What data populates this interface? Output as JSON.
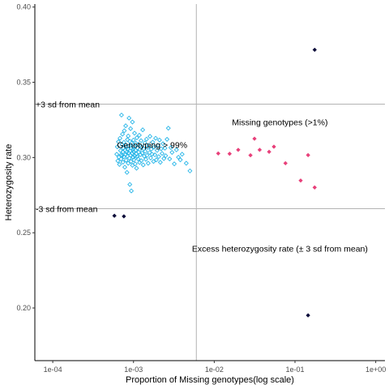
{
  "chart_data": {
    "type": "scatter",
    "xlabel": "Proportion of Missing genotypes(log scale)",
    "ylabel": "Heterozygosity rate",
    "xscale": "log",
    "xlim": [
      6e-05,
      1.3
    ],
    "ylim": [
      0.165,
      0.402
    ],
    "x_ticks": [
      {
        "value": 0.0001,
        "label": "1e-04"
      },
      {
        "value": 0.001,
        "label": "1e-03"
      },
      {
        "value": 0.01,
        "label": "1e-02"
      },
      {
        "value": 0.1,
        "label": "1e-01"
      },
      {
        "value": 1,
        "label": "1e+00"
      }
    ],
    "y_ticks": [
      {
        "value": 0.2,
        "label": "0.20"
      },
      {
        "value": 0.25,
        "label": "0.25"
      },
      {
        "value": 0.3,
        "label": "0.30"
      },
      {
        "value": 0.35,
        "label": "0.35"
      },
      {
        "value": 0.4,
        "label": "0.40"
      }
    ],
    "grid": false,
    "reference_lines": {
      "horizontal": [
        0.3355,
        0.266
      ],
      "vertical": [
        0.006
      ]
    },
    "annotations": [
      {
        "text": "+3 sd from mean",
        "x": 6e-05,
        "y": 0.3355,
        "color": "#1a3a1a",
        "anchor": "start"
      },
      {
        "text": "-3 sd from mean",
        "x": 6e-05,
        "y": 0.266,
        "color": "#1a3a1a",
        "anchor": "start"
      },
      {
        "text": "Genotyping > 99%",
        "x": 0.0017,
        "y": 0.3085,
        "color": "#000000",
        "anchor": "middle"
      },
      {
        "text": "Missing genotypes (>1%)",
        "x": 0.065,
        "y": 0.3235,
        "color": "#000000",
        "anchor": "middle"
      },
      {
        "text": "Excess heterozygosity rate (± 3 sd from mean)",
        "x": 0.065,
        "y": 0.2395,
        "color": "#000000",
        "anchor": "middle"
      }
    ],
    "series": [
      {
        "color": "#29b6e8",
        "marker": "open-diamond",
        "points": [
          [
            0.00062,
            0.3022
          ],
          [
            0.00063,
            0.3071
          ],
          [
            0.00064,
            0.2978
          ],
          [
            0.00065,
            0.3105
          ],
          [
            0.00066,
            0.3002
          ],
          [
            0.00067,
            0.2954
          ],
          [
            0.00068,
            0.3128
          ],
          [
            0.00069,
            0.3046
          ],
          [
            0.0007,
            0.3017
          ],
          [
            0.0007,
            0.2991
          ],
          [
            0.00071,
            0.3282
          ],
          [
            0.00072,
            0.3088
          ],
          [
            0.00072,
            0.3012
          ],
          [
            0.00073,
            0.3155
          ],
          [
            0.00074,
            0.3038
          ],
          [
            0.00074,
            0.2969
          ],
          [
            0.00075,
            0.3062
          ],
          [
            0.00076,
            0.3101
          ],
          [
            0.00076,
            0.3005
          ],
          [
            0.00077,
            0.3178
          ],
          [
            0.00078,
            0.2936
          ],
          [
            0.00078,
            0.3049
          ],
          [
            0.00079,
            0.3084
          ],
          [
            0.0008,
            0.3021
          ],
          [
            0.0008,
            0.3211
          ],
          [
            0.00081,
            0.2982
          ],
          [
            0.00082,
            0.3067
          ],
          [
            0.00082,
            0.3035
          ],
          [
            0.00083,
            0.2901
          ],
          [
            0.00084,
            0.3119
          ],
          [
            0.00084,
            0.3009
          ],
          [
            0.00085,
            0.3058
          ],
          [
            0.00086,
            0.3143
          ],
          [
            0.00086,
            0.2962
          ],
          [
            0.00087,
            0.3031
          ],
          [
            0.00088,
            0.3262
          ],
          [
            0.00088,
            0.3076
          ],
          [
            0.00089,
            0.2996
          ],
          [
            0.0009,
            0.3108
          ],
          [
            0.0009,
            0.2821
          ],
          [
            0.00091,
            0.3044
          ],
          [
            0.00092,
            0.3015
          ],
          [
            0.00092,
            0.3192
          ],
          [
            0.00093,
            0.2974
          ],
          [
            0.00094,
            0.3061
          ],
          [
            0.00094,
            0.2778
          ],
          [
            0.00095,
            0.3095
          ],
          [
            0.00096,
            0.3027
          ],
          [
            0.00097,
            0.3236
          ],
          [
            0.00097,
            0.2948
          ],
          [
            0.00098,
            0.3052
          ],
          [
            0.00099,
            0.3002
          ],
          [
            0.001,
            0.3116
          ],
          [
            0.001,
            0.3039
          ],
          [
            0.00101,
            0.2985
          ],
          [
            0.00102,
            0.3074
          ],
          [
            0.00103,
            0.3162
          ],
          [
            0.00104,
            0.3011
          ],
          [
            0.00105,
            0.2958
          ],
          [
            0.00106,
            0.3048
          ],
          [
            0.00107,
            0.3094
          ],
          [
            0.00108,
            0.3024
          ],
          [
            0.00109,
            0.2929
          ],
          [
            0.0011,
            0.3131
          ],
          [
            0.00111,
            0.3006
          ],
          [
            0.00112,
            0.3064
          ],
          [
            0.00114,
            0.2991
          ],
          [
            0.00115,
            0.3087
          ],
          [
            0.00116,
            0.3036
          ],
          [
            0.00118,
            0.3148
          ],
          [
            0.00119,
            0.2967
          ],
          [
            0.0012,
            0.3053
          ],
          [
            0.00122,
            0.3019
          ],
          [
            0.00124,
            0.3112
          ],
          [
            0.00125,
            0.2979
          ],
          [
            0.00127,
            0.3071
          ],
          [
            0.00128,
            0.3029
          ],
          [
            0.0013,
            0.3184
          ],
          [
            0.00132,
            0.2951
          ],
          [
            0.00134,
            0.3058
          ],
          [
            0.00136,
            0.3009
          ],
          [
            0.00138,
            0.3097
          ],
          [
            0.0014,
            0.3041
          ],
          [
            0.00142,
            0.2988
          ],
          [
            0.00145,
            0.3122
          ],
          [
            0.00147,
            0.3014
          ],
          [
            0.0015,
            0.3066
          ],
          [
            0.00152,
            0.2962
          ],
          [
            0.00155,
            0.3081
          ],
          [
            0.00158,
            0.3033
          ],
          [
            0.0016,
            0.3141
          ],
          [
            0.00163,
            0.2997
          ],
          [
            0.00166,
            0.3056
          ],
          [
            0.0017,
            0.3022
          ],
          [
            0.00173,
            0.3102
          ],
          [
            0.00177,
            0.2974
          ],
          [
            0.0018,
            0.3069
          ],
          [
            0.00184,
            0.3018
          ],
          [
            0.00188,
            0.3128
          ],
          [
            0.00192,
            0.2985
          ],
          [
            0.00196,
            0.3047
          ],
          [
            0.002,
            0.3081
          ],
          [
            0.00205,
            0.3006
          ],
          [
            0.0021,
            0.3116
          ],
          [
            0.00215,
            0.2968
          ],
          [
            0.0022,
            0.3058
          ],
          [
            0.00226,
            0.3027
          ],
          [
            0.00232,
            0.3092
          ],
          [
            0.00238,
            0.2993
          ],
          [
            0.00245,
            0.3062
          ],
          [
            0.0025,
            0.3012
          ],
          [
            0.0026,
            0.3121
          ],
          [
            0.0027,
            0.3195
          ],
          [
            0.0028,
            0.2991
          ],
          [
            0.0029,
            0.3066
          ],
          [
            0.003,
            0.3034
          ],
          [
            0.0032,
            0.2958
          ],
          [
            0.0034,
            0.3051
          ],
          [
            0.0036,
            0.3002
          ],
          [
            0.0038,
            0.2985
          ],
          [
            0.004,
            0.3022
          ],
          [
            0.0045,
            0.2962
          ],
          [
            0.005,
            0.2911
          ]
        ]
      },
      {
        "color": "#e8407a",
        "marker": "filled-diamond",
        "points": [
          [
            0.0112,
            0.3027
          ],
          [
            0.0155,
            0.3025
          ],
          [
            0.0198,
            0.3051
          ],
          [
            0.0281,
            0.3015
          ],
          [
            0.0315,
            0.3125
          ],
          [
            0.0365,
            0.3051
          ],
          [
            0.0478,
            0.3038
          ],
          [
            0.0548,
            0.3072
          ],
          [
            0.0762,
            0.2962
          ],
          [
            0.1175,
            0.2847
          ],
          [
            0.1452,
            0.3016
          ],
          [
            0.1752,
            0.2801
          ]
        ]
      },
      {
        "color": "#0d0d3a",
        "marker": "filled-diamond",
        "points": [
          [
            0.00058,
            0.2613
          ],
          [
            0.00076,
            0.2609
          ],
          [
            0.1752,
            0.3716
          ],
          [
            0.1451,
            0.1951
          ]
        ]
      }
    ]
  }
}
